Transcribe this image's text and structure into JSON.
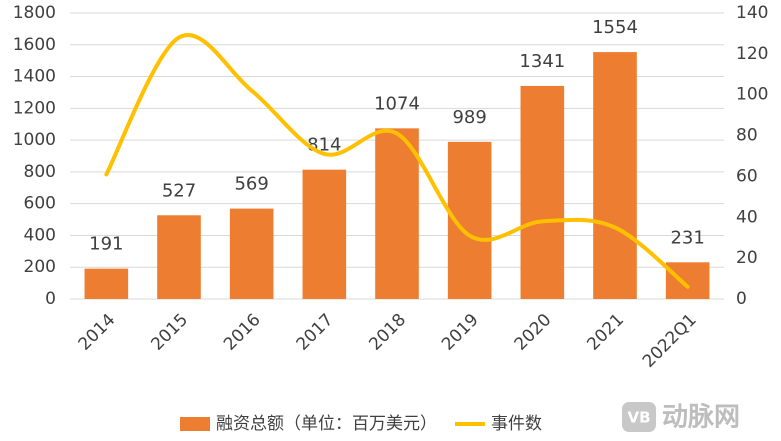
{
  "chart_data": {
    "type": "bar",
    "categories": [
      "2014",
      "2015",
      "2016",
      "2017",
      "2018",
      "2019",
      "2020",
      "2021",
      "2022Q1"
    ],
    "series": [
      {
        "name": "融资总额（单位：百万美元）",
        "type": "bar",
        "color": "#ED7D31",
        "values": [
          191,
          527,
          569,
          814,
          1074,
          989,
          1341,
          1554,
          231
        ]
      },
      {
        "name": "事件数",
        "type": "line",
        "axis": "y2",
        "color": "#FFC000",
        "values": [
          61,
          128,
          102,
          71,
          81,
          31,
          38,
          35,
          6
        ]
      }
    ],
    "ylim": [
      0,
      1800
    ],
    "yticks": [
      0,
      200,
      400,
      600,
      800,
      1000,
      1200,
      1400,
      1600,
      1800
    ],
    "y2lim": [
      0,
      140
    ],
    "y2ticks": [
      0,
      20,
      40,
      60,
      80,
      100,
      120,
      140
    ],
    "grid": true,
    "legend": "bottom",
    "watermark": "动脉网"
  }
}
